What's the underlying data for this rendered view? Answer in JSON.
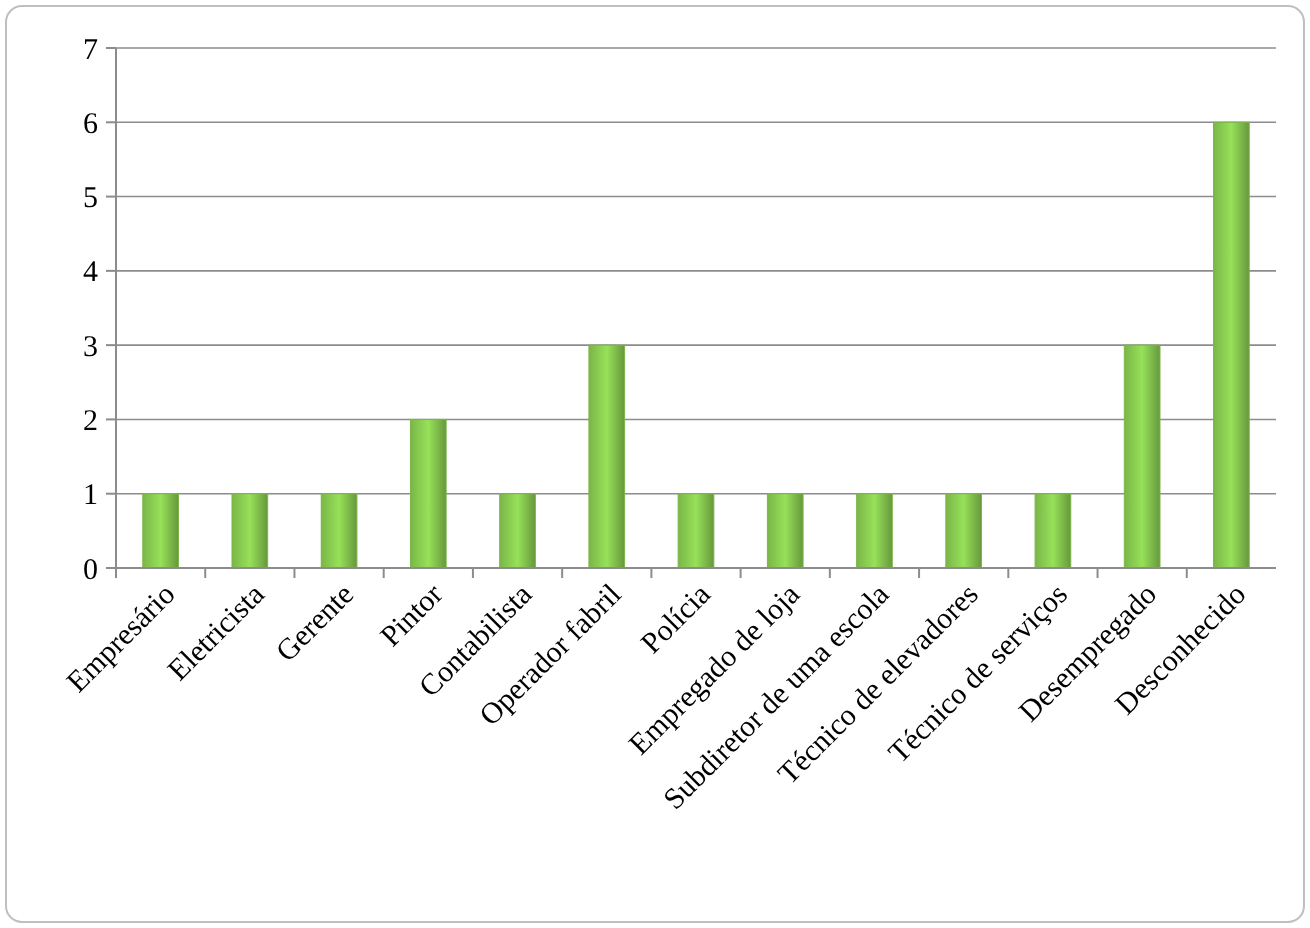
{
  "chart_data": {
    "type": "bar",
    "categories": [
      "Empresário",
      "Eletricista",
      "Gerente",
      "Pintor",
      "Contabilista",
      "Operador fabril",
      "Polícia",
      "Empregado de loja",
      "Subdiretor de uma escola",
      "Técnico de elevadores",
      "Técnico de serviços",
      "Desempregado",
      "Desconhecido"
    ],
    "values": [
      1,
      1,
      1,
      2,
      1,
      3,
      1,
      1,
      1,
      1,
      1,
      3,
      6
    ],
    "color": "#7ab648",
    "ylim": [
      0,
      7
    ],
    "yticks": [
      0,
      1,
      2,
      3,
      4,
      5,
      6,
      7
    ],
    "grid": "y"
  }
}
